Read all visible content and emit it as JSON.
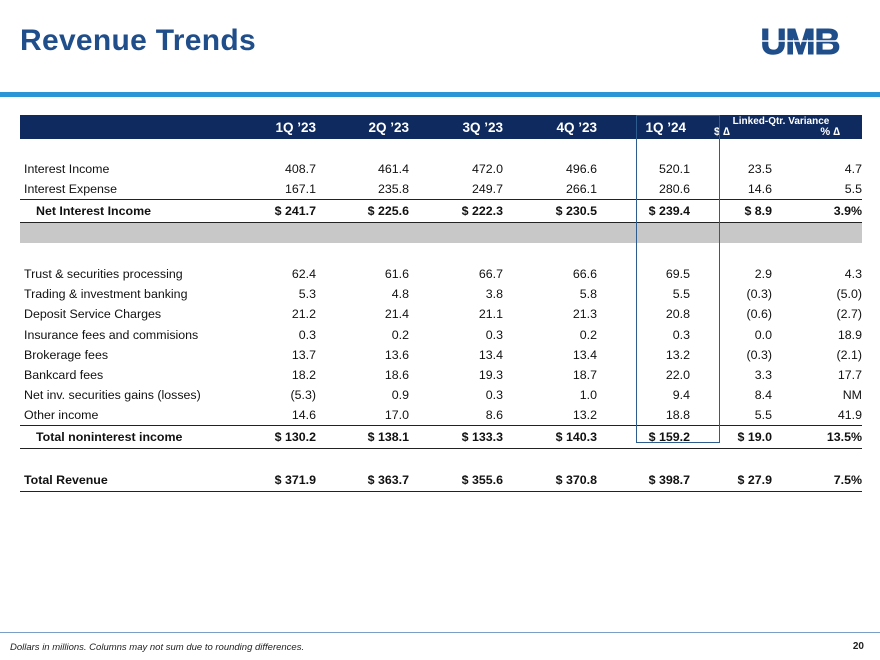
{
  "title": "Revenue Trends",
  "logo_text": "UMB",
  "header": {
    "periods": [
      "1Q ’23",
      "2Q ’23",
      "3Q ’23",
      "4Q ’23",
      "1Q ’24"
    ],
    "variance_title": "Linked-Qtr. Variance",
    "variance_dollar": "$ ∆",
    "variance_pct": "% ∆"
  },
  "rows_top": [
    {
      "label": "Interest Income",
      "values": [
        "408.7",
        "461.4",
        "472.0",
        "496.6",
        "520.1",
        "23.5",
        "4.7"
      ]
    },
    {
      "label": "Interest Expense",
      "values": [
        "167.1",
        "235.8",
        "249.7",
        "266.1",
        "280.6",
        "14.6",
        "5.5"
      ]
    }
  ],
  "net_interest": {
    "label": "Net Interest Income",
    "values": [
      "$ 241.7",
      "$ 225.6",
      "$ 222.3",
      "$ 230.5",
      "$ 239.4",
      "$ 8.9",
      "3.9%"
    ]
  },
  "rows_nonint": [
    {
      "label": "Trust & securities processing",
      "values": [
        "62.4",
        "61.6",
        "66.7",
        "66.6",
        "69.5",
        "2.9",
        "4.3"
      ]
    },
    {
      "label": "Trading & investment banking",
      "values": [
        "5.3",
        "4.8",
        "3.8",
        "5.8",
        "5.5",
        "(0.3)",
        "(5.0)"
      ]
    },
    {
      "label": "Deposit Service Charges",
      "values": [
        "21.2",
        "21.4",
        "21.1",
        "21.3",
        "20.8",
        "(0.6)",
        "(2.7)"
      ]
    },
    {
      "label": "Insurance fees and commisions",
      "values": [
        "0.3",
        "0.2",
        "0.3",
        "0.2",
        "0.3",
        "0.0",
        "18.9"
      ]
    },
    {
      "label": "Brokerage fees",
      "values": [
        "13.7",
        "13.6",
        "13.4",
        "13.4",
        "13.2",
        "(0.3)",
        "(2.1)"
      ]
    },
    {
      "label": "Bankcard fees",
      "values": [
        "18.2",
        "18.6",
        "19.3",
        "18.7",
        "22.0",
        "3.3",
        "17.7"
      ]
    },
    {
      "label": "Net inv. securities gains (losses)",
      "values": [
        "(5.3)",
        "0.9",
        "0.3",
        "1.0",
        "9.4",
        "8.4",
        "NM"
      ]
    },
    {
      "label": "Other income",
      "values": [
        "14.6",
        "17.0",
        "8.6",
        "13.2",
        "18.8",
        "5.5",
        "41.9"
      ]
    }
  ],
  "total_nonint": {
    "label": "Total noninterest income",
    "values": [
      "$ 130.2",
      "$ 138.1",
      "$ 133.3",
      "$ 140.3",
      "$ 159.2",
      "$ 19.0",
      "13.5%"
    ]
  },
  "total_revenue": {
    "label": "Total Revenue",
    "values": [
      "$ 371.9",
      "$ 363.7",
      "$ 355.6",
      "$ 370.8",
      "$ 398.7",
      "$ 27.9",
      "7.5%"
    ]
  },
  "footnote": "Dollars in millions. Columns may not sum due to rounding differences.",
  "page_number": "20",
  "colors": {
    "title": "#1f4e8a",
    "header_bg": "#0f2a5e",
    "accent_rule": "#2a96d6",
    "logo": "#1f4e8a"
  }
}
